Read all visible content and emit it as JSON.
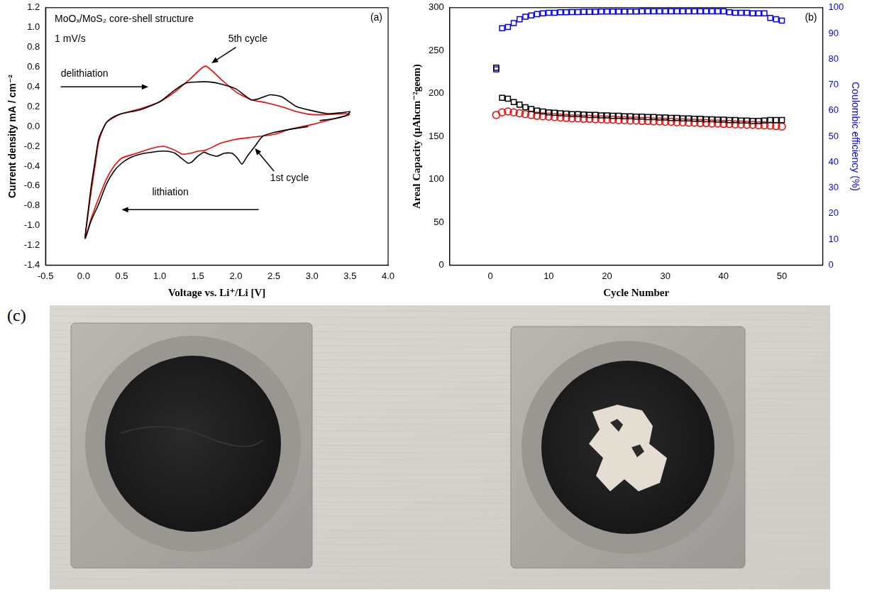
{
  "chart_data": [
    {
      "type": "line",
      "xlabel": "Voltage vs. Li⁺/Li [V]",
      "ylabel": "Current density mA / cm⁻²",
      "xlim": [
        -0.5,
        4.0
      ],
      "xticks": [
        -0.5,
        {
          "value": 0,
          "label": "0.0"
        },
        0.5,
        {
          "value": 1,
          "label": "1.0"
        },
        1.5,
        {
          "value": 2,
          "label": "2.0"
        },
        2.5,
        {
          "value": 3,
          "label": "3.0"
        },
        3.5,
        {
          "value": 4,
          "label": "4.0"
        }
      ],
      "ylim": [
        -1.4,
        1.2
      ],
      "yticks": [
        -1.4,
        -1.2,
        {
          "value": -1,
          "label": "-1.0"
        },
        -0.8,
        -0.6,
        -0.4,
        -0.2,
        {
          "value": 0,
          "label": "0.0"
        },
        0.2,
        0.4,
        0.6,
        0.8,
        {
          "value": 1,
          "label": "1.0"
        },
        1.2
      ],
      "grid": false,
      "annotations": [
        "(a)",
        "MoOₓ/MoS₂ core-shell structure",
        "1 mV/s",
        "delithiation",
        "lithiation",
        "5th cycle",
        "1st cycle"
      ],
      "series": [
        {
          "color": "#000000",
          "x": [
            2.95,
            2.7,
            2.5,
            2.35,
            2.25,
            2.15,
            2.08,
            2.02,
            1.95,
            1.85,
            1.75,
            1.65,
            1.58,
            1.5,
            1.42,
            1.37,
            1.3,
            1.2,
            1.1,
            1.0,
            0.9,
            0.8,
            0.7,
            0.6,
            0.5,
            0.4,
            0.3,
            0.2,
            0.1,
            0.02,
            0.06,
            0.1,
            0.15,
            0.2,
            0.3,
            0.4,
            0.5,
            0.75,
            1.0,
            1.2,
            1.35,
            1.5,
            1.65,
            1.8,
            2.0,
            2.2,
            2.3,
            2.45,
            2.6,
            2.8,
            3.0,
            3.2,
            3.4,
            3.5,
            3.45,
            3.3,
            3.1
          ],
          "values": [
            0.0,
            -0.03,
            -0.06,
            -0.1,
            -0.2,
            -0.3,
            -0.38,
            -0.32,
            -0.27,
            -0.27,
            -0.3,
            -0.28,
            -0.26,
            -0.3,
            -0.36,
            -0.37,
            -0.33,
            -0.27,
            -0.25,
            -0.25,
            -0.26,
            -0.27,
            -0.29,
            -0.32,
            -0.37,
            -0.45,
            -0.58,
            -0.78,
            -0.95,
            -1.13,
            -0.85,
            -0.6,
            -0.35,
            -0.12,
            0.04,
            0.1,
            0.13,
            0.17,
            0.25,
            0.37,
            0.44,
            0.45,
            0.45,
            0.43,
            0.38,
            0.27,
            0.28,
            0.32,
            0.3,
            0.2,
            0.16,
            0.13,
            0.14,
            0.15,
            0.11,
            0.08,
            0.06
          ]
        },
        {
          "color": "#ff0000",
          "x": [
            3.5,
            3.2,
            3.0,
            2.7,
            2.5,
            2.2,
            2.0,
            1.8,
            1.6,
            1.5,
            1.4,
            1.3,
            1.2,
            1.05,
            0.9,
            0.7,
            0.5,
            0.4,
            0.3,
            0.2,
            0.1,
            0.02,
            0.06,
            0.1,
            0.15,
            0.2,
            0.3,
            0.5,
            0.75,
            1.0,
            1.2,
            1.4,
            1.6,
            1.8,
            2.0,
            2.2,
            2.4,
            2.6,
            2.8,
            3.0,
            3.2,
            3.45,
            3.5
          ],
          "values": [
            0.12,
            0.06,
            0.02,
            -0.03,
            -0.08,
            -0.11,
            -0.13,
            -0.17,
            -0.24,
            -0.25,
            -0.27,
            -0.28,
            -0.24,
            -0.2,
            -0.22,
            -0.27,
            -0.32,
            -0.4,
            -0.53,
            -0.72,
            -0.93,
            -1.13,
            -0.88,
            -0.65,
            -0.4,
            -0.15,
            0.04,
            0.13,
            0.18,
            0.25,
            0.35,
            0.48,
            0.61,
            0.48,
            0.35,
            0.27,
            0.24,
            0.2,
            0.15,
            0.12,
            0.12,
            0.13,
            0.12
          ]
        }
      ]
    },
    {
      "type": "scatter",
      "xlabel": "Cycle Number",
      "ylabel": "Areal Capacity (μAhcm⁻²geom)",
      "y2label": "Coulombic efficiency (%)",
      "xlim": [
        -7,
        57
      ],
      "xticks": [
        0,
        10,
        20,
        30,
        40,
        50
      ],
      "ylim": [
        0,
        300
      ],
      "yticks": [
        0,
        50,
        100,
        150,
        200,
        250,
        300
      ],
      "y2lim": [
        0,
        100
      ],
      "y2ticks": [
        0,
        10,
        20,
        30,
        40,
        50,
        60,
        70,
        80,
        90,
        100
      ],
      "grid": false,
      "annotations": [
        "(b)"
      ],
      "x": [
        1,
        2,
        3,
        4,
        5,
        6,
        7,
        8,
        9,
        10,
        11,
        12,
        13,
        14,
        15,
        16,
        17,
        18,
        19,
        20,
        21,
        22,
        23,
        24,
        25,
        26,
        27,
        28,
        29,
        30,
        31,
        32,
        33,
        34,
        35,
        36,
        37,
        38,
        39,
        40,
        41,
        42,
        43,
        44,
        45,
        46,
        47,
        48,
        49,
        50
      ],
      "series": [
        {
          "color": "#000000",
          "marker": "square",
          "values": [
            230,
            195,
            194,
            190,
            187,
            184,
            182,
            180,
            179,
            178,
            177.5,
            177,
            176.5,
            176,
            176,
            175.5,
            175,
            175,
            174.5,
            174.5,
            174,
            174,
            173.5,
            173.5,
            173,
            173,
            172.5,
            172.5,
            172,
            172,
            171.5,
            171.5,
            171,
            171,
            170.5,
            170.5,
            170,
            170,
            169.5,
            169.5,
            169,
            169,
            168.5,
            168.5,
            168,
            168,
            168.5,
            169,
            169,
            169
          ]
        },
        {
          "color": "#ff0000",
          "marker": "circle",
          "values": [
            175,
            178,
            179,
            178,
            177,
            176,
            175,
            174,
            173.5,
            173,
            172.5,
            172,
            171.5,
            171,
            171,
            170.5,
            170.5,
            170,
            170,
            169.5,
            169.5,
            169,
            169,
            168.5,
            168.5,
            168,
            168,
            167.5,
            167.5,
            167,
            167,
            166.5,
            166.5,
            166,
            166,
            165.5,
            165.5,
            165,
            165,
            164.5,
            164.5,
            164,
            164,
            163.5,
            163.5,
            163,
            163,
            162.5,
            162,
            161.5
          ]
        },
        {
          "color": "#0000ff",
          "marker": "square",
          "axis": "y2",
          "values": [
            76,
            92,
            92.5,
            94,
            95.5,
            96.5,
            97,
            97.5,
            97.8,
            98,
            98,
            98.2,
            98.2,
            98.3,
            98.3,
            98.4,
            98.4,
            98.4,
            98.5,
            98.5,
            98.5,
            98.5,
            98.5,
            98.5,
            98.5,
            98.6,
            98.6,
            98.6,
            98.6,
            98.6,
            98.6,
            98.6,
            98.6,
            98.6,
            98.6,
            98.6,
            98.6,
            98.6,
            98.6,
            98.6,
            98.2,
            98,
            98,
            98,
            97.8,
            97.8,
            97.8,
            96,
            95.5,
            95
          ]
        }
      ]
    }
  ],
  "photo": {
    "label": "(c)"
  }
}
